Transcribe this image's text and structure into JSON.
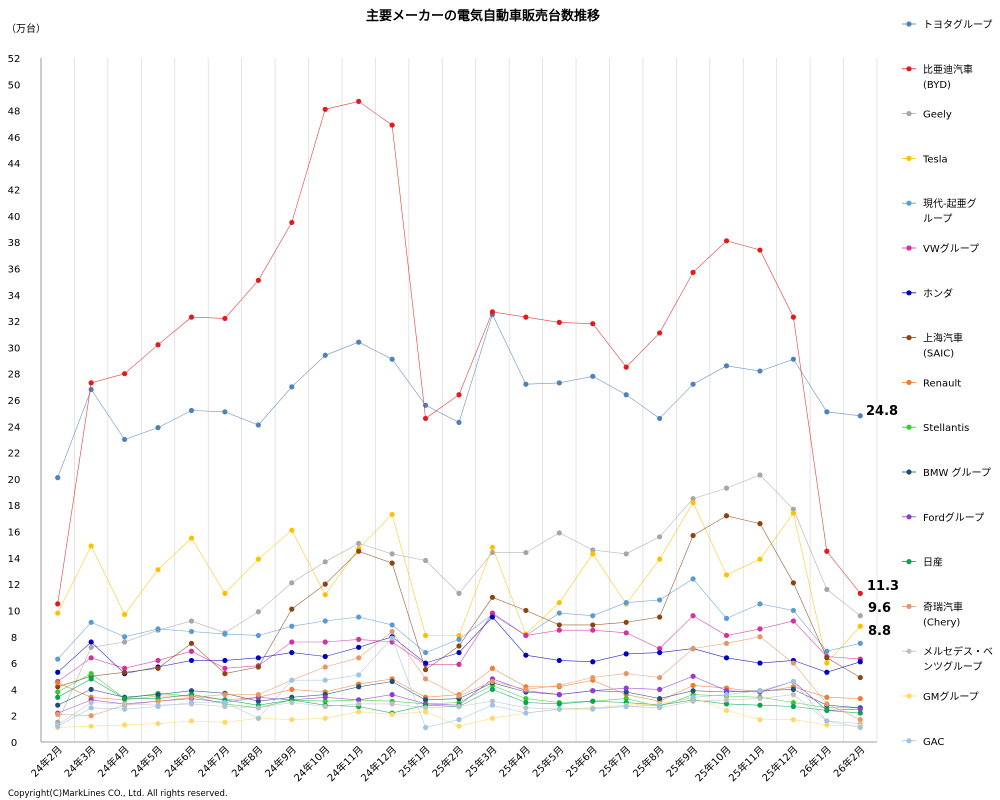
{
  "chart_data": {
    "type": "line",
    "title": "主要メーカーの電気自動車販売台数推移",
    "ylabel": "（万台）",
    "xlabel": "",
    "ylim": [
      0,
      52
    ],
    "yticks": [
      0,
      2,
      4,
      6,
      8,
      10,
      12,
      14,
      16,
      18,
      20,
      22,
      24,
      26,
      28,
      30,
      32,
      34,
      36,
      38,
      40,
      42,
      44,
      46,
      48,
      50,
      52
    ],
    "grid": "vertical",
    "legend_position": "right",
    "categories": [
      "24年2月",
      "24年3月",
      "24年4月",
      "24年5月",
      "24年6月",
      "24年7月",
      "24年8月",
      "24年9月",
      "24年10月",
      "24年11月",
      "24年12月",
      "25年1月",
      "25年2月",
      "25年3月",
      "25年4月",
      "25年5月",
      "25年6月",
      "25年7月",
      "25年8月",
      "25年9月",
      "25年10月",
      "25年11月",
      "25年12月",
      "26年1月",
      "26年2月"
    ],
    "series": [
      {
        "name": "トヨタグループ",
        "color": "#4f81bd",
        "values": [
          20.1,
          26.8,
          23.0,
          23.9,
          25.2,
          25.1,
          24.1,
          27.0,
          29.4,
          30.4,
          29.1,
          25.6,
          24.3,
          32.5,
          27.2,
          27.3,
          27.8,
          26.4,
          24.6,
          27.2,
          28.6,
          28.2,
          29.1,
          25.1,
          24.8
        ]
      },
      {
        "name": "比亜迪汽車\n(BYD)",
        "color": "#e31a1c",
        "values": [
          10.5,
          27.3,
          28.0,
          30.2,
          32.3,
          32.2,
          35.1,
          39.5,
          48.1,
          48.7,
          46.9,
          24.6,
          26.4,
          32.7,
          32.3,
          31.9,
          31.8,
          28.5,
          31.1,
          35.7,
          38.1,
          37.4,
          32.3,
          14.5,
          11.3
        ]
      },
      {
        "name": "Geely",
        "color": "#a6a6a6",
        "values": [
          1.5,
          7.2,
          7.6,
          8.5,
          9.2,
          8.3,
          9.9,
          12.1,
          13.7,
          15.1,
          14.3,
          13.8,
          11.3,
          14.4,
          14.4,
          15.9,
          14.6,
          14.3,
          15.6,
          18.5,
          19.3,
          20.3,
          17.7,
          11.6,
          9.6
        ]
      },
      {
        "name": "Tesla",
        "color": "#ffc000",
        "values": [
          9.8,
          14.9,
          9.7,
          13.1,
          15.5,
          11.3,
          13.9,
          16.1,
          11.2,
          14.7,
          17.3,
          8.1,
          8.1,
          14.8,
          8.2,
          10.6,
          14.3,
          10.5,
          13.9,
          18.2,
          12.7,
          13.9,
          17.4,
          6.0,
          8.8
        ]
      },
      {
        "name": "現代-起亜グ\nループ",
        "color": "#5b9bd5",
        "values": [
          6.3,
          9.1,
          8.0,
          8.6,
          8.4,
          8.2,
          8.1,
          8.8,
          9.2,
          9.5,
          8.9,
          6.8,
          7.8,
          9.7,
          8.1,
          9.8,
          9.6,
          10.6,
          10.8,
          12.4,
          9.4,
          10.5,
          10.0,
          6.9,
          7.5
        ]
      },
      {
        "name": "VWグループ",
        "color": "#d62fa0",
        "values": [
          4.6,
          6.4,
          5.6,
          6.2,
          6.9,
          5.6,
          5.8,
          7.6,
          7.6,
          7.8,
          7.6,
          5.9,
          5.9,
          9.8,
          8.1,
          8.5,
          8.5,
          8.3,
          7.1,
          9.6,
          8.1,
          8.6,
          9.2,
          6.5,
          6.3
        ]
      },
      {
        "name": "ホンダ",
        "color": "#0000c0",
        "values": [
          5.3,
          7.6,
          5.2,
          5.7,
          6.2,
          6.2,
          6.4,
          6.8,
          6.5,
          7.2,
          8.0,
          6.0,
          6.8,
          9.5,
          6.6,
          6.2,
          6.1,
          6.7,
          6.8,
          7.1,
          6.4,
          6.0,
          6.2,
          5.3,
          6.1
        ]
      },
      {
        "name": "上海汽車\n(SAIC)",
        "color": "#8b4513",
        "values": [
          4.2,
          5.0,
          5.3,
          5.6,
          7.5,
          5.2,
          5.7,
          10.1,
          12.0,
          14.5,
          13.6,
          5.5,
          7.3,
          11.0,
          10.0,
          8.9,
          8.9,
          9.1,
          9.5,
          15.7,
          17.2,
          16.6,
          12.1,
          6.4,
          4.9
        ]
      },
      {
        "name": "Renault",
        "color": "#ed7d31",
        "values": [
          4.5,
          3.4,
          3.2,
          3.5,
          3.5,
          3.2,
          3.4,
          4.0,
          3.8,
          4.4,
          4.8,
          3.4,
          3.6,
          5.6,
          4.2,
          4.2,
          4.7,
          3.6,
          3.1,
          4.3,
          4.1,
          3.8,
          4.2,
          3.4,
          3.3
        ]
      },
      {
        "name": "Stellantis",
        "color": "#33cc33",
        "values": [
          3.8,
          5.2,
          3.3,
          3.7,
          3.5,
          2.9,
          2.6,
          3.2,
          3.1,
          3.2,
          3.1,
          2.9,
          3.0,
          4.3,
          3.3,
          3.0,
          3.1,
          3.3,
          2.7,
          3.6,
          3.5,
          3.4,
          3.0,
          2.6,
          2.6
        ]
      },
      {
        "name": "BMW グループ",
        "color": "#1f4e79",
        "values": [
          2.8,
          4.0,
          3.4,
          3.6,
          3.9,
          3.7,
          3.1,
          3.4,
          3.6,
          4.2,
          4.6,
          3.2,
          3.3,
          4.5,
          3.8,
          3.6,
          3.9,
          3.8,
          3.3,
          3.9,
          3.8,
          3.9,
          4.0,
          2.8,
          2.6
        ]
      },
      {
        "name": "Fordグループ",
        "color": "#8e3ed6",
        "values": [
          2.2,
          3.2,
          2.9,
          3.1,
          3.3,
          3.0,
          3.4,
          3.2,
          3.4,
          3.2,
          3.6,
          2.9,
          2.8,
          4.8,
          3.9,
          3.6,
          3.9,
          4.1,
          4.0,
          5.0,
          3.9,
          3.8,
          4.6,
          2.4,
          2.5
        ]
      },
      {
        "name": "日産",
        "color": "#00a651",
        "values": [
          3.4,
          4.8,
          3.3,
          3.3,
          3.6,
          3.2,
          2.8,
          3.2,
          2.8,
          2.7,
          2.2,
          2.8,
          2.7,
          4.0,
          3.0,
          2.9,
          3.1,
          3.0,
          2.8,
          3.2,
          2.9,
          2.8,
          2.7,
          2.4,
          2.2
        ]
      },
      {
        "name": "奇瑞汽車\n(Chery)",
        "color": "#e59866",
        "values": [
          2.1,
          2.0,
          2.8,
          3.1,
          3.4,
          3.6,
          3.6,
          4.7,
          5.7,
          6.4,
          8.4,
          4.8,
          3.5,
          4.6,
          4.0,
          4.3,
          4.9,
          5.2,
          4.9,
          7.1,
          7.5,
          8.0,
          6.0,
          2.9,
          1.7
        ]
      },
      {
        "name": "メルセデス・ベ\nンツグループ",
        "color": "#bfbfbf",
        "values": [
          1.3,
          3.0,
          2.9,
          2.8,
          2.9,
          2.7,
          2.6,
          3.0,
          2.7,
          2.9,
          2.9,
          2.6,
          2.7,
          3.1,
          2.6,
          2.5,
          2.6,
          2.7,
          2.6,
          3.1,
          3.2,
          3.3,
          3.6,
          1.6,
          1.4
        ]
      },
      {
        "name": "GMグループ",
        "color": "#ffd966",
        "values": [
          1.1,
          1.2,
          1.3,
          1.4,
          1.6,
          1.5,
          1.8,
          1.7,
          1.8,
          2.3,
          2.1,
          2.3,
          1.2,
          1.8,
          2.2,
          2.5,
          2.6,
          2.8,
          2.9,
          3.4,
          2.4,
          1.7,
          1.7,
          1.3,
          1.2
        ]
      },
      {
        "name": "GAC",
        "color": "#9dc3e6",
        "values": [
          1.2,
          2.6,
          2.5,
          2.7,
          3.0,
          3.0,
          1.8,
          4.7,
          4.7,
          5.1,
          7.9,
          1.1,
          1.7,
          2.8,
          2.2,
          2.5,
          2.5,
          2.7,
          2.8,
          3.4,
          3.6,
          3.9,
          4.6,
          1.6,
          1.1
        ]
      }
    ],
    "annotations": [
      "24.8",
      "11.3",
      "9.6",
      "8.8"
    ]
  },
  "copyright": "Copyright(C)MarkLines CO., Ltd. All rights reserved."
}
